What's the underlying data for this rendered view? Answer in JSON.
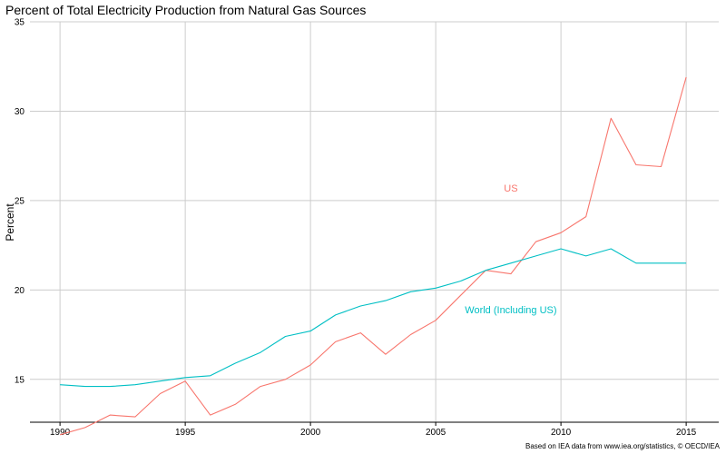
{
  "chart_data": {
    "type": "line",
    "title": "Percent of Total Electricity Production from Natural Gas Sources",
    "ylabel": "Percent",
    "xlabel": "",
    "caption": "Based on IEA data from  www.iea.org/statistics, © OECD/IEA",
    "x": [
      1990,
      1991,
      1992,
      1993,
      1994,
      1995,
      1996,
      1997,
      1998,
      1999,
      2000,
      2001,
      2002,
      2003,
      2004,
      2005,
      2006,
      2007,
      2008,
      2009,
      2010,
      2011,
      2012,
      2013,
      2014,
      2015
    ],
    "xlim": [
      1988.8,
      2016.3
    ],
    "ylim": [
      12.6,
      35
    ],
    "xticks": [
      1990,
      1995,
      2000,
      2005,
      2010,
      2015
    ],
    "yticks": [
      15,
      20,
      25,
      30,
      35
    ],
    "grid": true,
    "legend": "none",
    "series": [
      {
        "name": "US",
        "color": "#F8766D",
        "values": [
          11.9,
          12.3,
          13.0,
          12.9,
          14.2,
          14.9,
          13.0,
          13.6,
          14.6,
          15.0,
          15.8,
          17.1,
          17.6,
          16.4,
          17.5,
          18.3,
          19.7,
          21.1,
          20.9,
          22.7,
          23.2,
          24.1,
          29.6,
          27.0,
          26.9,
          31.9
        ],
        "label_at": [
          2008.0,
          25.7
        ]
      },
      {
        "name": "World (Including US)",
        "color": "#00BFC4",
        "values": [
          14.7,
          14.6,
          14.6,
          14.7,
          14.9,
          15.1,
          15.2,
          15.9,
          16.5,
          17.4,
          17.7,
          18.6,
          19.1,
          19.4,
          19.9,
          20.1,
          20.5,
          21.1,
          21.5,
          21.9,
          22.3,
          21.9,
          22.3,
          21.5,
          21.5,
          21.5
        ],
        "label_at": [
          2008.0,
          18.9
        ]
      }
    ]
  }
}
